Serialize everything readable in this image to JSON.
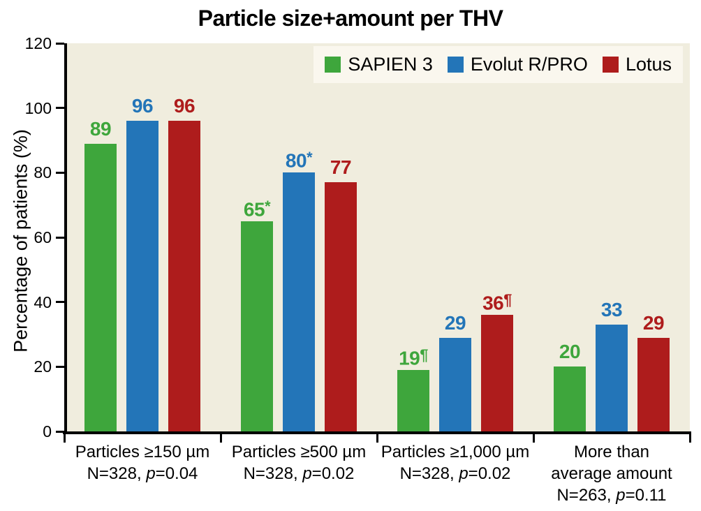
{
  "title": "Particle size+amount per THV",
  "colors": {
    "plot_background": "#F0EDDE",
    "legend_background": "#FAF7EE",
    "axis": "#000000",
    "sapien3_green": "#3EA63C",
    "evolut_blue": "#2375B8",
    "lotus_red": "#AE1C1C"
  },
  "chart_data": {
    "type": "bar",
    "title": "Particle size+amount per THV",
    "ylabel": "Percentage of patients (%)",
    "xlabel": "",
    "ylim": [
      0,
      120
    ],
    "yticks": [
      0,
      20,
      40,
      60,
      80,
      100,
      120
    ],
    "grid": false,
    "legend_position": "top-right",
    "categories": [
      {
        "lines": [
          "Particles ≥150 µm"
        ],
        "stat_pre": "N=328, ",
        "stat_italic": "p",
        "stat_post": "=0.04"
      },
      {
        "lines": [
          "Particles ≥500 µm"
        ],
        "stat_pre": "N=328, ",
        "stat_italic": "p",
        "stat_post": "=0.02"
      },
      {
        "lines": [
          "Particles ≥1,000 µm"
        ],
        "stat_pre": "N=328, ",
        "stat_italic": "p",
        "stat_post": "=0.02"
      },
      {
        "lines": [
          "More than",
          "average amount"
        ],
        "stat_pre": "N=263, ",
        "stat_italic": "p",
        "stat_post": "=0.11"
      }
    ],
    "series": [
      {
        "name": "SAPIEN 3",
        "color": "#3EA63C",
        "values": [
          89,
          65,
          19,
          20
        ],
        "value_labels": [
          {
            "text": "89",
            "sup": ""
          },
          {
            "text": "65",
            "sup": "*"
          },
          {
            "text": "19",
            "sup": "¶"
          },
          {
            "text": "20",
            "sup": ""
          }
        ]
      },
      {
        "name": "Evolut R/PRO",
        "color": "#2375B8",
        "values": [
          96,
          80,
          29,
          33
        ],
        "value_labels": [
          {
            "text": "96",
            "sup": ""
          },
          {
            "text": "80",
            "sup": "*"
          },
          {
            "text": "29",
            "sup": ""
          },
          {
            "text": "33",
            "sup": ""
          }
        ]
      },
      {
        "name": "Lotus",
        "color": "#AE1C1C",
        "values": [
          96,
          77,
          36,
          29
        ],
        "value_labels": [
          {
            "text": "96",
            "sup": ""
          },
          {
            "text": "77",
            "sup": ""
          },
          {
            "text": "36",
            "sup": "¶"
          },
          {
            "text": "29",
            "sup": ""
          }
        ]
      }
    ]
  }
}
